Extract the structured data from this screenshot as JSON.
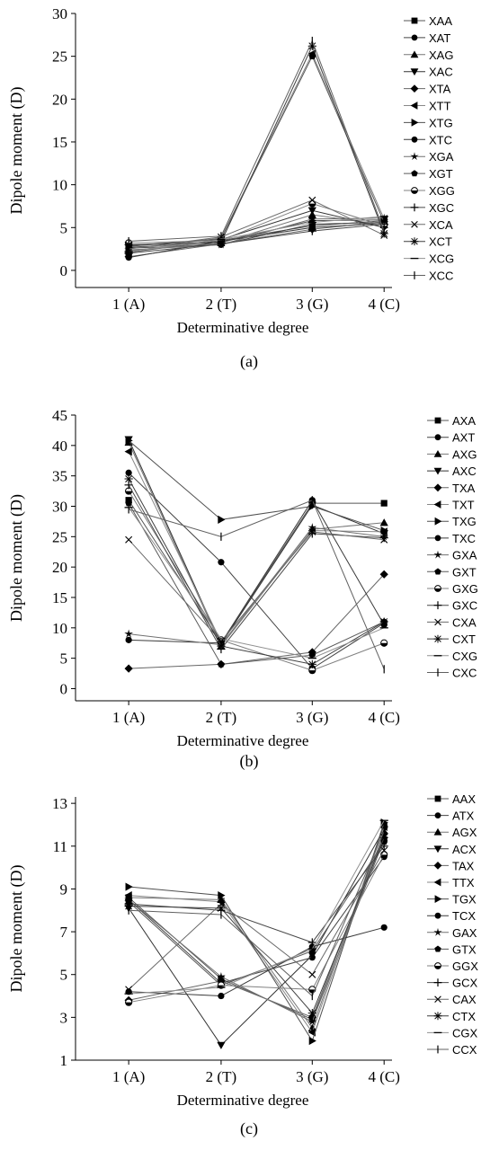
{
  "figure": {
    "panel_labels": [
      "(a)",
      "(b)",
      "(c)"
    ]
  },
  "chart_data": [
    {
      "type": "line",
      "panel": "(a)",
      "xlabel": "Determinative degree",
      "ylabel": "Dipole moment (D)",
      "categories": [
        "1 (A)",
        "2 (T)",
        "3 (G)",
        "4 (C)"
      ],
      "ylim": [
        -2,
        30
      ],
      "yticks": [
        0,
        5,
        10,
        15,
        20,
        25,
        30
      ],
      "legend_position": "right",
      "series": [
        {
          "name": "XAA",
          "marker": "square",
          "values": [
            2.1,
            3.5,
            5.2,
            5.8
          ]
        },
        {
          "name": "XAT",
          "marker": "circle",
          "values": [
            2.6,
            3.0,
            5.4,
            5.6
          ]
        },
        {
          "name": "XAG",
          "marker": "triangle-up",
          "values": [
            2.3,
            3.2,
            6.5,
            5.3
          ]
        },
        {
          "name": "XAC",
          "marker": "triangle-down",
          "values": [
            2.9,
            3.6,
            7.0,
            5.0
          ]
        },
        {
          "name": "XTA",
          "marker": "diamond",
          "values": [
            1.6,
            3.1,
            4.8,
            5.7
          ]
        },
        {
          "name": "XTT",
          "marker": "triangle-left",
          "values": [
            2.2,
            3.8,
            25.3,
            6.0
          ]
        },
        {
          "name": "XTG",
          "marker": "triangle-right",
          "values": [
            2.7,
            3.3,
            5.8,
            5.9
          ]
        },
        {
          "name": "XTC",
          "marker": "circle",
          "values": [
            1.5,
            3.4,
            5.0,
            5.5
          ]
        },
        {
          "name": "XGA",
          "marker": "star",
          "values": [
            2.4,
            3.0,
            6.0,
            6.1
          ]
        },
        {
          "name": "XGT",
          "marker": "pentagon",
          "values": [
            2.8,
            3.7,
            25.0,
            5.6
          ]
        },
        {
          "name": "XGG",
          "marker": "half-circle",
          "values": [
            3.2,
            3.5,
            7.8,
            5.2
          ]
        },
        {
          "name": "XGC",
          "marker": "plus",
          "values": [
            2.0,
            3.1,
            4.6,
            5.4
          ]
        },
        {
          "name": "XCA",
          "marker": "x",
          "values": [
            2.5,
            3.9,
            8.2,
            4.1
          ]
        },
        {
          "name": "XCT",
          "marker": "asterisk",
          "values": [
            3.0,
            3.3,
            26.2,
            4.3
          ]
        },
        {
          "name": "XCG",
          "marker": "dash",
          "values": [
            2.2,
            3.6,
            5.6,
            6.3
          ]
        },
        {
          "name": "XCC",
          "marker": "bar",
          "values": [
            3.4,
            4.0,
            26.8,
            4.6
          ]
        }
      ]
    },
    {
      "type": "line",
      "panel": "(b)",
      "xlabel": "Determinative degree",
      "ylabel": "Dipole moment (D)",
      "categories": [
        "1 (A)",
        "2 (T)",
        "3 (G)",
        "4 (C)"
      ],
      "ylim": [
        -2,
        45
      ],
      "yticks": [
        0,
        5,
        10,
        15,
        20,
        25,
        30,
        35,
        40,
        45
      ],
      "legend_position": "right",
      "series": [
        {
          "name": "AXA",
          "marker": "square",
          "values": [
            31,
            7.5,
            30.5,
            30.5
          ]
        },
        {
          "name": "AXT",
          "marker": "circle",
          "values": [
            35.5,
            20.8,
            3.3,
            10.8
          ]
        },
        {
          "name": "AXG",
          "marker": "triangle-up",
          "values": [
            40.5,
            7.0,
            26.2,
            27.3
          ]
        },
        {
          "name": "AXC",
          "marker": "triangle-down",
          "values": [
            41.0,
            7.3,
            30.2,
            25.5
          ]
        },
        {
          "name": "TXA",
          "marker": "diamond",
          "values": [
            3.3,
            4.0,
            6.0,
            18.8
          ]
        },
        {
          "name": "TXT",
          "marker": "triangle-left",
          "values": [
            39.0,
            7.7,
            26.0,
            25.8
          ]
        },
        {
          "name": "TXG",
          "marker": "triangle-right",
          "values": [
            40.8,
            27.8,
            30.0,
            26.0
          ]
        },
        {
          "name": "TXC",
          "marker": "circle",
          "values": [
            8.0,
            7.5,
            31.0,
            10.5
          ]
        },
        {
          "name": "GXA",
          "marker": "star",
          "values": [
            9.0,
            7.2,
            26.5,
            25.0
          ]
        },
        {
          "name": "GXT",
          "marker": "pentagon",
          "values": [
            30.5,
            4.0,
            5.5,
            11.0
          ]
        },
        {
          "name": "GXG",
          "marker": "half-circle",
          "values": [
            32.5,
            8.0,
            3.0,
            7.5
          ]
        },
        {
          "name": "GXC",
          "marker": "plus",
          "values": [
            33.5,
            6.5,
            25.5,
            24.8
          ]
        },
        {
          "name": "CXA",
          "marker": "x",
          "values": [
            24.5,
            7.8,
            25.8,
            24.5
          ]
        },
        {
          "name": "CXT",
          "marker": "asterisk",
          "values": [
            34.5,
            7.0,
            4.0,
            11.0
          ]
        },
        {
          "name": "CXG",
          "marker": "dash",
          "values": [
            29.8,
            8.2,
            5.0,
            10.0
          ]
        },
        {
          "name": "CXC",
          "marker": "bar",
          "values": [
            29.5,
            25.0,
            31.0,
            3.2
          ]
        }
      ]
    },
    {
      "type": "line",
      "panel": "(c)",
      "xlabel": "Determinative degree",
      "ylabel": "Dipole moment (D)",
      "categories": [
        "1 (A)",
        "2 (T)",
        "3 (G)",
        "4 (C)"
      ],
      "ylim": [
        1,
        13.3
      ],
      "yticks": [
        1,
        3,
        5,
        7,
        9,
        11,
        13
      ],
      "legend_position": "right",
      "series": [
        {
          "name": "AAX",
          "marker": "square",
          "values": [
            8.6,
            4.8,
            2.9,
            11.3
          ]
        },
        {
          "name": "ATX",
          "marker": "circle",
          "values": [
            8.5,
            4.6,
            5.8,
            10.5
          ]
        },
        {
          "name": "AGX",
          "marker": "triangle-up",
          "values": [
            8.6,
            8.5,
            2.5,
            12.0
          ]
        },
        {
          "name": "ACX",
          "marker": "triangle-down",
          "values": [
            8.1,
            1.7,
            5.9,
            11.8
          ]
        },
        {
          "name": "TAX",
          "marker": "diamond",
          "values": [
            3.8,
            4.7,
            3.0,
            11.6
          ]
        },
        {
          "name": "TTX",
          "marker": "triangle-left",
          "values": [
            8.7,
            8.4,
            2.3,
            11.9
          ]
        },
        {
          "name": "TGX",
          "marker": "triangle-right",
          "values": [
            9.1,
            8.7,
            1.9,
            12.1
          ]
        },
        {
          "name": "TCX",
          "marker": "circle",
          "values": [
            4.2,
            4.0,
            6.3,
            7.2
          ]
        },
        {
          "name": "GAX",
          "marker": "star",
          "values": [
            8.5,
            4.9,
            2.8,
            11.5
          ]
        },
        {
          "name": "GTX",
          "marker": "pentagon",
          "values": [
            8.4,
            4.5,
            6.1,
            11.2
          ]
        },
        {
          "name": "GGX",
          "marker": "half-circle",
          "values": [
            3.7,
            4.5,
            4.3,
            10.6
          ]
        },
        {
          "name": "GCX",
          "marker": "plus",
          "values": [
            8.3,
            8.0,
            6.5,
            11.0
          ]
        },
        {
          "name": "CAX",
          "marker": "x",
          "values": [
            4.3,
            8.3,
            5.0,
            10.8
          ]
        },
        {
          "name": "CTX",
          "marker": "asterisk",
          "values": [
            8.2,
            8.1,
            3.2,
            11.4
          ]
        },
        {
          "name": "CGX",
          "marker": "dash",
          "values": [
            4.1,
            4.4,
            6.2,
            12.2
          ]
        },
        {
          "name": "CCX",
          "marker": "bar",
          "values": [
            8.0,
            7.8,
            4.0,
            11.7
          ]
        }
      ]
    }
  ]
}
